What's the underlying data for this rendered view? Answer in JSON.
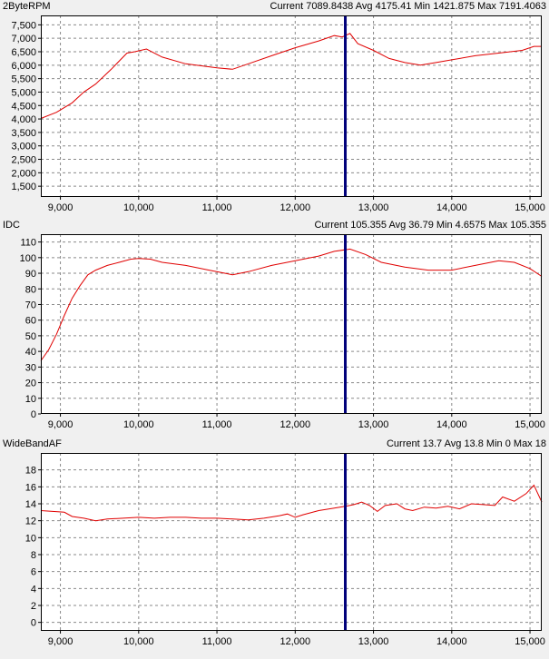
{
  "panels": [
    {
      "name": "2ByteRPM",
      "stats": {
        "current_label": "Current",
        "current": "7089.8438",
        "avg_label": "Avg",
        "avg": "4175.41",
        "min_label": "Min",
        "min": "1421.875",
        "max_label": "Max",
        "max": "7191.4063"
      }
    },
    {
      "name": "IDC",
      "stats": {
        "current_label": "Current",
        "current": "105.355",
        "avg_label": "Avg",
        "avg": "36.79",
        "min_label": "Min",
        "min": "4.6575",
        "max_label": "Max",
        "max": "105.355"
      }
    },
    {
      "name": "WideBandAF",
      "stats": {
        "current_label": "Current",
        "current": "13.7",
        "avg_label": "Avg",
        "avg": "13.8",
        "min_label": "Min",
        "min": "0",
        "max_label": "Max",
        "max": "18"
      }
    }
  ],
  "colors": {
    "series": "#e00000",
    "cursor": "#00007a",
    "grid": "#8a8a8a",
    "plot_bg": "#ffffff",
    "frame": "#000000"
  },
  "chart_data": [
    {
      "type": "line",
      "title": "2ByteRPM",
      "xlim": [
        8750,
        15150
      ],
      "ylim": [
        1100,
        7850
      ],
      "x_ticks": [
        9000,
        10000,
        11000,
        12000,
        13000,
        14000,
        15000
      ],
      "x_tick_labels": [
        "9,000",
        "10,000",
        "11,000",
        "12,000",
        "13,000",
        "14,000",
        "15,000"
      ],
      "y_ticks": [
        1500,
        2000,
        2500,
        3000,
        3500,
        4000,
        4500,
        5000,
        5500,
        6000,
        6500,
        7000,
        7500
      ],
      "y_tick_labels": [
        "1,500",
        "2,000",
        "2,500",
        "3,000",
        "3,500",
        "4,000",
        "4,500",
        "5,000",
        "5,500",
        "6,000",
        "6,500",
        "7,000",
        "7,500"
      ],
      "grid": true,
      "cursor_x": 12640,
      "series": [
        {
          "x": [
            8750,
            8950,
            9150,
            9300,
            9450,
            9650,
            9850,
            9950,
            10100,
            10300,
            10600,
            11000,
            11200,
            11400,
            11700,
            12000,
            12300,
            12500,
            12600,
            12700,
            12800,
            13000,
            13200,
            13400,
            13600,
            13800,
            14000,
            14300,
            14600,
            14900,
            15050,
            15150
          ],
          "y": [
            4020,
            4250,
            4600,
            5000,
            5300,
            5850,
            6450,
            6500,
            6600,
            6300,
            6050,
            5900,
            5850,
            6050,
            6350,
            6650,
            6900,
            7100,
            7050,
            7180,
            6800,
            6550,
            6250,
            6100,
            6000,
            6100,
            6200,
            6350,
            6450,
            6550,
            6700,
            6700
          ]
        }
      ]
    },
    {
      "type": "line",
      "title": "IDC",
      "xlim": [
        8750,
        15150
      ],
      "ylim": [
        0,
        115
      ],
      "x_ticks": [
        9000,
        10000,
        11000,
        12000,
        13000,
        14000,
        15000
      ],
      "x_tick_labels": [
        "9,000",
        "10,000",
        "11,000",
        "12,000",
        "13,000",
        "14,000",
        "15,000"
      ],
      "y_ticks": [
        0,
        10,
        20,
        30,
        40,
        50,
        60,
        70,
        80,
        90,
        100,
        110
      ],
      "y_tick_labels": [
        "0",
        "10",
        "20",
        "30",
        "40",
        "50",
        "60",
        "70",
        "80",
        "90",
        "100",
        "110"
      ],
      "grid": true,
      "cursor_x": 12640,
      "series": [
        {
          "x": [
            8750,
            8850,
            8950,
            9050,
            9150,
            9250,
            9350,
            9450,
            9600,
            9750,
            9900,
            10000,
            10150,
            10300,
            10600,
            10900,
            11100,
            11200,
            11400,
            11700,
            12000,
            12300,
            12500,
            12700,
            12900,
            13100,
            13400,
            13700,
            14000,
            14300,
            14600,
            14800,
            15000,
            15150
          ],
          "y": [
            34,
            41,
            51,
            63,
            74,
            82,
            89,
            92,
            95,
            97,
            99,
            99.5,
            99,
            97,
            95,
            92,
            90,
            89,
            91,
            95,
            98,
            101,
            104,
            105.5,
            102,
            97,
            94,
            92,
            92,
            95,
            98,
            97,
            93,
            88
          ]
        }
      ]
    },
    {
      "type": "line",
      "title": "WideBandAF",
      "xlim": [
        8750,
        15150
      ],
      "ylim": [
        -1,
        20
      ],
      "x_ticks": [
        9000,
        10000,
        11000,
        12000,
        13000,
        14000,
        15000
      ],
      "x_tick_labels": [
        "9,000",
        "10,000",
        "11,000",
        "12,000",
        "13,000",
        "14,000",
        "15,000"
      ],
      "y_ticks": [
        0,
        2,
        4,
        6,
        8,
        10,
        12,
        14,
        16,
        18
      ],
      "y_tick_labels": [
        "0",
        "2",
        "4",
        "6",
        "8",
        "10",
        "12",
        "14",
        "16",
        "18"
      ],
      "grid": true,
      "cursor_x": 12640,
      "series": [
        {
          "x": [
            8750,
            8900,
            9050,
            9150,
            9300,
            9450,
            9600,
            9800,
            10000,
            10200,
            10400,
            10600,
            10800,
            11000,
            11200,
            11400,
            11600,
            11800,
            11900,
            12000,
            12100,
            12300,
            12500,
            12640,
            12750,
            12850,
            12950,
            13050,
            13150,
            13300,
            13400,
            13500,
            13650,
            13800,
            13950,
            14100,
            14250,
            14400,
            14550,
            14650,
            14800,
            14950,
            15050,
            15150
          ],
          "y": [
            13.2,
            13.1,
            13.0,
            12.5,
            12.3,
            12.0,
            12.2,
            12.3,
            12.4,
            12.3,
            12.4,
            12.4,
            12.3,
            12.3,
            12.2,
            12.1,
            12.3,
            12.6,
            12.8,
            12.4,
            12.7,
            13.2,
            13.5,
            13.7,
            13.9,
            14.2,
            13.8,
            13.1,
            13.8,
            14.0,
            13.4,
            13.2,
            13.6,
            13.5,
            13.7,
            13.4,
            14.0,
            13.9,
            13.8,
            14.8,
            14.3,
            15.2,
            16.2,
            14.2
          ]
        }
      ]
    }
  ]
}
